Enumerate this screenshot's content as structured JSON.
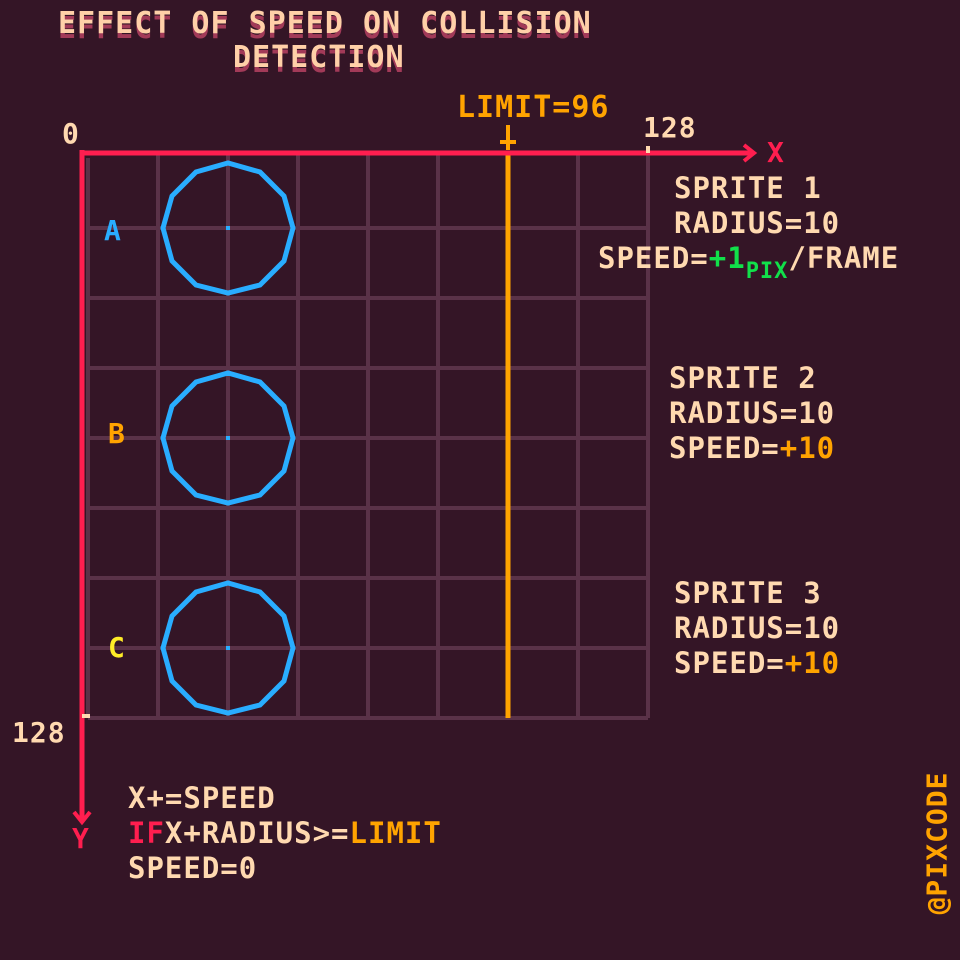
{
  "title": {
    "line1": "EFFECT OF SPEED ON COLLISION",
    "line2": "DETECTION"
  },
  "axes": {
    "origin_label": "0",
    "x_max_label": "128",
    "y_max_label": "128",
    "x_axis_label": "X",
    "y_axis_label": "Y",
    "limit_label": "LIMIT=96"
  },
  "rows": [
    {
      "label": "A",
      "color": "#29adff"
    },
    {
      "label": "B",
      "color": "#ffa300"
    },
    {
      "label": "C",
      "color": "#ffec27"
    }
  ],
  "sprites": [
    {
      "name": "SPRITE 1",
      "radius": "RADIUS=10",
      "speed_prefix": "SPEED=",
      "speed_value": "+1",
      "speed_unit": "PIX",
      "speed_suffix": "/FRAME"
    },
    {
      "name": "SPRITE 2",
      "radius": "RADIUS=10",
      "speed_prefix": "SPEED=",
      "speed_value": "+10"
    },
    {
      "name": "SPRITE 3",
      "radius": "RADIUS=10",
      "speed_prefix": "SPEED=",
      "speed_value": "+10"
    }
  ],
  "code": {
    "line1": "X+=SPEED",
    "if_keyword": "IF",
    "line2_rest": "X+RADIUS>=",
    "limit_word": "LIMIT",
    "line3": "SPEED=0"
  },
  "watermark": "@PIXCODE",
  "colors": {
    "background": "#341526",
    "grid": "#5a3248",
    "axis": "#ff1e4f",
    "limit": "#ffa300",
    "circle": "#29adff",
    "text": "#ffd9b0"
  }
}
